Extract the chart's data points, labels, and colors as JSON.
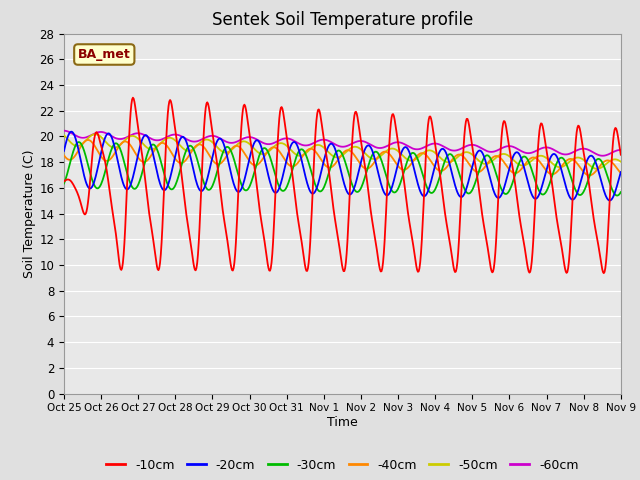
{
  "title": "Sentek Soil Temperature profile",
  "xlabel": "Time",
  "ylabel": "Soil Temperature (C)",
  "ylim": [
    0,
    28
  ],
  "yticks": [
    0,
    2,
    4,
    6,
    8,
    10,
    12,
    14,
    16,
    18,
    20,
    22,
    24,
    26,
    28
  ],
  "x_labels": [
    "Oct 25",
    "Oct 26",
    "Oct 27",
    "Oct 28",
    "Oct 29",
    "Oct 30",
    "Oct 31",
    "Nov 1",
    "Nov 2",
    "Nov 3",
    "Nov 4",
    "Nov 5",
    "Nov 6",
    "Nov 7",
    "Nov 8",
    "Nov 9"
  ],
  "n_days": 15,
  "pts_per_day": 48,
  "colors": {
    "-10cm": "#ff0000",
    "-20cm": "#0000ff",
    "-30cm": "#00bb00",
    "-40cm": "#ff8800",
    "-50cm": "#cccc00",
    "-60cm": "#cc00cc"
  },
  "legend_colors": [
    "#ff0000",
    "#0000ff",
    "#00bb00",
    "#ff8800",
    "#cccc00",
    "#cc00cc"
  ],
  "legend_labels": [
    "-10cm",
    "-20cm",
    "-30cm",
    "-40cm",
    "-50cm",
    "-60cm"
  ],
  "annotation_text": "BA_met",
  "background_color": "#e0e0e0",
  "plot_bg_color": "#e8e8e8",
  "grid_color": "#ffffff",
  "figsize": [
    6.4,
    4.8
  ],
  "dpi": 100
}
